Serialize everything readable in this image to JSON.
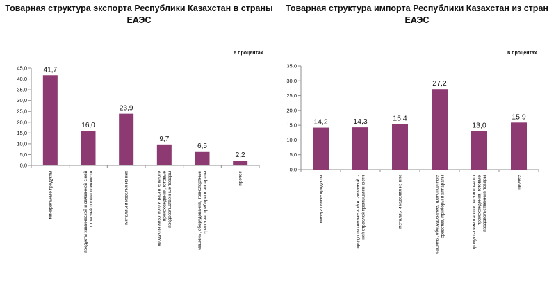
{
  "chart_data": [
    {
      "type": "bar",
      "title_line1": "Товарная  структура  экспорта  Республики  Казахстан  в страны",
      "title_line2": "ЕАЭС",
      "unit_label": "в процентах",
      "categories": [
        [
          "минеральные продукты"
        ],
        [
          "продукты химической и связанной с ней",
          "отраслей промышленности"
        ],
        [
          "металлы и изделия из них"
        ],
        [
          "продукты животного и растительного",
          "происхождения, готовые",
          "продовольственные товары"
        ],
        [
          "машины, оборудование, транспортные",
          "средства, приборы и аппараты"
        ],
        [
          "прочее"
        ]
      ],
      "values": [
        41.7,
        16.0,
        23.9,
        9.7,
        6.5,
        2.2
      ],
      "value_labels": [
        "41,7",
        "16,0",
        "23,9",
        "9,7",
        "6,5",
        "2,2"
      ],
      "ylim": [
        0,
        45
      ],
      "yticks": [
        0,
        5,
        10,
        15,
        20,
        25,
        30,
        35,
        40,
        45
      ],
      "ytick_labels": [
        "0,0",
        "5,0",
        "10,0",
        "15,0",
        "20,0",
        "25,0",
        "30,0",
        "35,0",
        "40,0",
        "45,0"
      ],
      "bar_color": "#8e3a72",
      "legend": "none"
    },
    {
      "type": "bar",
      "title_line1": "Товарная  структура  импорта  Республики  Казахстан  из  стран",
      "title_line2": "ЕАЭС",
      "unit_label": "в процентах",
      "categories": [
        [
          "минеральные продукты"
        ],
        [
          "продукты химической и связанной с",
          "ней отраслей промышленности"
        ],
        [
          "металлы и изделия из них"
        ],
        [
          "машины, оборудование, транспортные",
          "средства, приборы и аппараты"
        ],
        [
          "продукты животного и растительного",
          "происхождения, готовые",
          "продовольственные товары"
        ],
        [
          "прочее"
        ]
      ],
      "values": [
        14.2,
        14.3,
        15.4,
        27.2,
        13.0,
        15.9
      ],
      "value_labels": [
        "14,2",
        "14,3",
        "15,4",
        "27,2",
        "13,0",
        "15,9"
      ],
      "ylim": [
        0,
        35
      ],
      "yticks": [
        0,
        5,
        10,
        15,
        20,
        25,
        30,
        35
      ],
      "ytick_labels": [
        "0,0",
        "5,0",
        "10,0",
        "15,0",
        "20,0",
        "25,0",
        "30,0",
        "35,0"
      ],
      "bar_color": "#8e3a72",
      "legend": "none"
    }
  ]
}
